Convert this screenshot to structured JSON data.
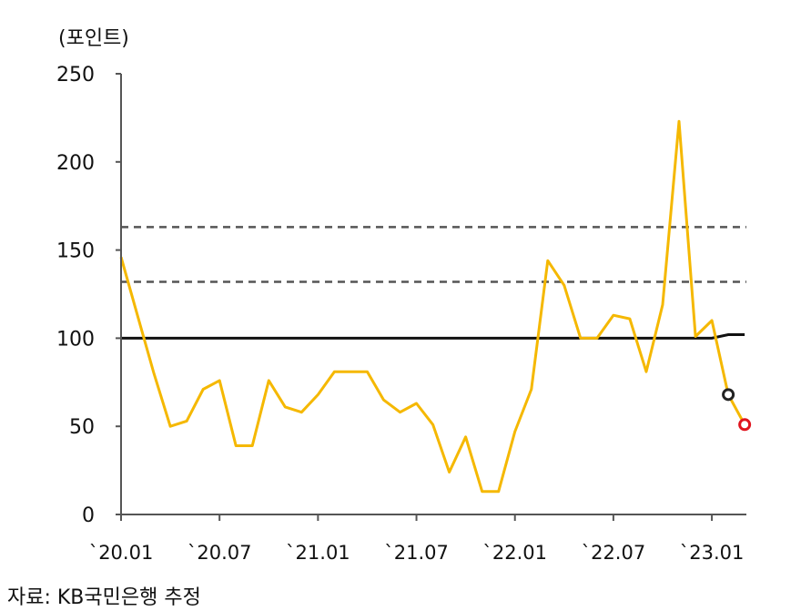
{
  "unit_label": "(포인트)",
  "source_label": "자료: KB국민은행 추정",
  "colors": {
    "index_line": "#f5b800",
    "baseline": "#111111",
    "threshold": "#555555",
    "current_marker": "#222222",
    "forecast_marker": "#e0141e"
  },
  "chart_data": {
    "type": "line",
    "title": "",
    "ylabel": "(포인트)",
    "ylim": [
      0,
      250
    ],
    "yticks": [
      0,
      50,
      100,
      150,
      200,
      250
    ],
    "x": [
      "2020-01",
      "2020-02",
      "2020-03",
      "2020-04",
      "2020-05",
      "2020-06",
      "2020-07",
      "2020-08",
      "2020-09",
      "2020-10",
      "2020-11",
      "2020-12",
      "2021-01",
      "2021-02",
      "2021-03",
      "2021-04",
      "2021-05",
      "2021-06",
      "2021-07",
      "2021-08",
      "2021-09",
      "2021-10",
      "2021-11",
      "2021-12",
      "2022-01",
      "2022-02",
      "2022-03",
      "2022-04",
      "2022-05",
      "2022-06",
      "2022-07",
      "2022-08",
      "2022-09",
      "2022-10",
      "2022-11",
      "2022-12",
      "2023-01",
      "2023-02",
      "2023-03"
    ],
    "xtick_labels": [
      "`20.01",
      "`20.07",
      "`21.01",
      "`21.07",
      "`22.01",
      "`22.07",
      "`23.01"
    ],
    "xtick_positions": [
      "2020-01",
      "2020-07",
      "2021-01",
      "2021-07",
      "2022-01",
      "2022-07",
      "2023-01"
    ],
    "series": [
      {
        "values": [
          146,
          113,
          80,
          50,
          53,
          71,
          76,
          39,
          39,
          76,
          61,
          58,
          68,
          81,
          81,
          81,
          65,
          58,
          63,
          51,
          24,
          44,
          13,
          13,
          47,
          71,
          144,
          130,
          100,
          100,
          113,
          111,
          81,
          119,
          223,
          101,
          110,
          68,
          51
        ]
      },
      {
        "values": [
          100,
          100,
          100,
          100,
          100,
          100,
          100,
          100,
          100,
          100,
          100,
          100,
          100,
          100,
          100,
          100,
          100,
          100,
          100,
          100,
          100,
          100,
          100,
          100,
          100,
          100,
          100,
          100,
          100,
          100,
          100,
          100,
          100,
          100,
          100,
          100,
          100,
          102,
          102
        ]
      }
    ],
    "reference_lines": [
      163,
      132
    ],
    "markers": [
      {
        "x": "2023-02",
        "y": 68
      },
      {
        "x": "2023-03",
        "y": 51
      }
    ],
    "grid": false
  }
}
